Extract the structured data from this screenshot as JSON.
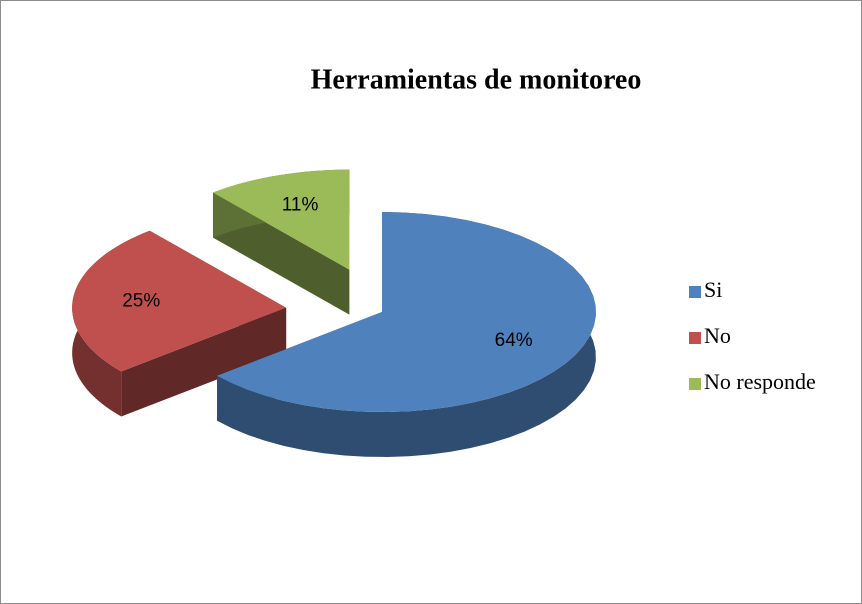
{
  "chart_data": {
    "type": "pie",
    "title": "Herramientas de monitoreo",
    "categories": [
      "Si",
      "No",
      "No responde"
    ],
    "values": [
      64,
      25,
      11
    ],
    "value_labels": [
      "64%",
      "25%",
      "11%"
    ],
    "colors": [
      "#4f81bd",
      "#c0504d",
      "#9bbb59"
    ],
    "legend": "right"
  }
}
